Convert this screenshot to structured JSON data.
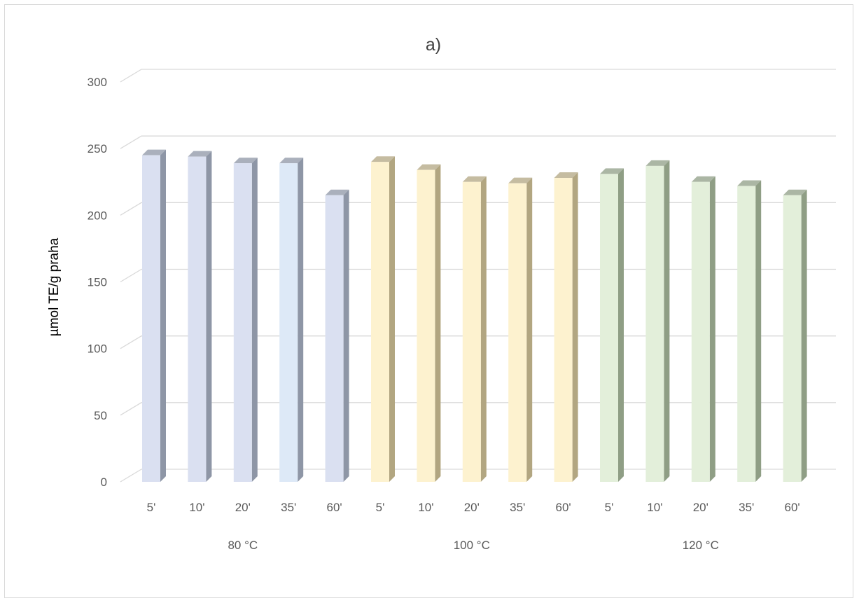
{
  "chart_data": {
    "type": "bar",
    "title": "a)",
    "ylabel": "µmol TE/g praha",
    "xlabel": "",
    "ylim": [
      0,
      300
    ],
    "yticks": [
      0,
      50,
      100,
      150,
      200,
      250,
      300
    ],
    "grid": true,
    "legend": "none",
    "groups": [
      {
        "label": "80 °C",
        "categories": [
          "5'",
          "10'",
          "20'",
          "35'",
          "60'"
        ],
        "values": [
          245,
          244,
          239,
          239,
          215
        ],
        "colors": [
          "#dae0f1",
          "#dae0f1",
          "#dae0f1",
          "#dde9f7",
          "#dae0f1"
        ],
        "side_color": "#8e96a6"
      },
      {
        "label": "100 °C",
        "categories": [
          "5'",
          "10'",
          "20'",
          "35'",
          "60'"
        ],
        "values": [
          240,
          234,
          225,
          224,
          228
        ],
        "colors": [
          "#fdf2cf",
          "#fdf2cf",
          "#fdf2cf",
          "#fdf2cf",
          "#fdf2cf"
        ],
        "side_color": "#b2a681"
      },
      {
        "label": "120 °C",
        "categories": [
          "5'",
          "10'",
          "20'",
          "35'",
          "60'"
        ],
        "values": [
          231,
          237,
          225,
          222,
          215
        ],
        "colors": [
          "#e3efda",
          "#e3efda",
          "#e3efda",
          "#e3efda",
          "#e3efda"
        ],
        "side_color": "#8f9e85"
      }
    ]
  }
}
